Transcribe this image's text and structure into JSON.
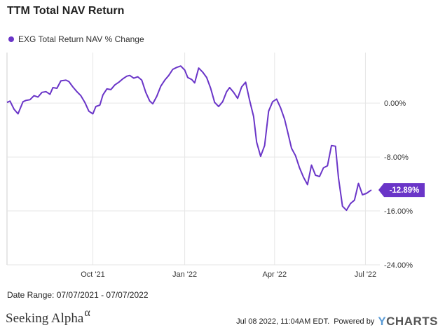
{
  "header": {
    "title": "TTM Total NAV Return"
  },
  "colors": {
    "series": "#6a35c8",
    "grid": "#e6e6e6",
    "axis_text": "#333333"
  },
  "footer": {
    "date_range": "Date Range: 07/07/2021 - 07/07/2022",
    "brand_name": "Seeking Alpha",
    "brand_symbol": "α",
    "timestamp": "Jul 08 2022, 11:04AM EDT.",
    "powered_by": "Powered by",
    "provider_y": "Y",
    "provider_rest": "CHARTS"
  },
  "chart_data": {
    "type": "line",
    "title": "TTM Total NAV Return",
    "legend": "top-left",
    "grid": true,
    "ylim": [
      -24,
      7.5
    ],
    "y_ticks": [
      0,
      -8,
      -16,
      -24
    ],
    "y_tick_labels": [
      "0.00%",
      "-8.00%",
      "-16.00%",
      "-24.00%"
    ],
    "x_ticks": [
      "2021-10-01",
      "2022-01-01",
      "2022-04-01",
      "2022-07-01"
    ],
    "x_tick_labels": [
      "Oct '21",
      "Jan '22",
      "Apr '22",
      "Jul '22"
    ],
    "last_value_label": "-12.89%",
    "series": [
      {
        "name": "EXG Total Return NAV % Change",
        "x": [
          "2021-07-07",
          "2021-07-10",
          "2021-07-14",
          "2021-07-18",
          "2021-07-23",
          "2021-07-26",
          "2021-07-30",
          "2021-08-03",
          "2021-08-07",
          "2021-08-11",
          "2021-08-15",
          "2021-08-19",
          "2021-08-22",
          "2021-08-26",
          "2021-08-30",
          "2021-09-04",
          "2021-09-07",
          "2021-09-11",
          "2021-09-15",
          "2021-09-19",
          "2021-09-23",
          "2021-09-27",
          "2021-10-01",
          "2021-10-04",
          "2021-10-08",
          "2021-10-11",
          "2021-10-15",
          "2021-10-19",
          "2021-10-23",
          "2021-10-27",
          "2021-10-31",
          "2021-11-04",
          "2021-11-07",
          "2021-11-11",
          "2021-11-15",
          "2021-11-19",
          "2021-11-23",
          "2021-11-27",
          "2021-11-30",
          "2021-12-04",
          "2021-12-08",
          "2021-12-12",
          "2021-12-16",
          "2021-12-20",
          "2021-12-24",
          "2021-12-28",
          "2022-01-01",
          "2022-01-04",
          "2022-01-08",
          "2022-01-11",
          "2022-01-15",
          "2022-01-19",
          "2022-01-23",
          "2022-01-27",
          "2022-01-31",
          "2022-02-04",
          "2022-02-08",
          "2022-02-12",
          "2022-02-15",
          "2022-02-19",
          "2022-02-23",
          "2022-02-27",
          "2022-03-03",
          "2022-03-07",
          "2022-03-11",
          "2022-03-14",
          "2022-03-18",
          "2022-03-22",
          "2022-03-26",
          "2022-03-30",
          "2022-04-03",
          "2022-04-07",
          "2022-04-11",
          "2022-04-14",
          "2022-04-18",
          "2022-04-22",
          "2022-04-26",
          "2022-04-30",
          "2022-05-04",
          "2022-05-08",
          "2022-05-12",
          "2022-05-16",
          "2022-05-20",
          "2022-05-24",
          "2022-05-28",
          "2022-06-01",
          "2022-06-04",
          "2022-06-08",
          "2022-06-12",
          "2022-06-16",
          "2022-06-20",
          "2022-06-24",
          "2022-06-28",
          "2022-07-02",
          "2022-07-07"
        ],
        "values": [
          0.1,
          0.3,
          -0.9,
          -1.6,
          0.2,
          0.4,
          0.5,
          1.1,
          0.9,
          1.6,
          1.7,
          1.3,
          2.3,
          2.2,
          3.3,
          3.4,
          3.2,
          2.4,
          1.7,
          1.1,
          0.1,
          -1.2,
          -1.6,
          -0.5,
          -0.3,
          1.2,
          2.1,
          2.0,
          2.7,
          3.1,
          3.6,
          4.0,
          4.1,
          3.7,
          3.9,
          3.4,
          1.6,
          0.3,
          -0.1,
          1.0,
          2.5,
          3.4,
          4.1,
          5.0,
          5.3,
          5.5,
          4.9,
          3.8,
          3.5,
          3.0,
          5.2,
          4.6,
          3.8,
          2.2,
          0.1,
          -0.5,
          0.2,
          1.7,
          2.3,
          1.6,
          0.7,
          2.4,
          3.1,
          0.4,
          -2.0,
          -5.8,
          -7.9,
          -6.3,
          -1.2,
          0.2,
          0.6,
          -0.7,
          -2.4,
          -4.2,
          -6.7,
          -7.8,
          -9.6,
          -11.0,
          -12.1,
          -9.2,
          -10.7,
          -10.9,
          -9.6,
          -9.3,
          -6.3,
          -6.4,
          -11.1,
          -15.3,
          -15.9,
          -14.9,
          -14.4,
          -11.9,
          -13.6,
          -13.4,
          -12.89
        ]
      }
    ]
  }
}
